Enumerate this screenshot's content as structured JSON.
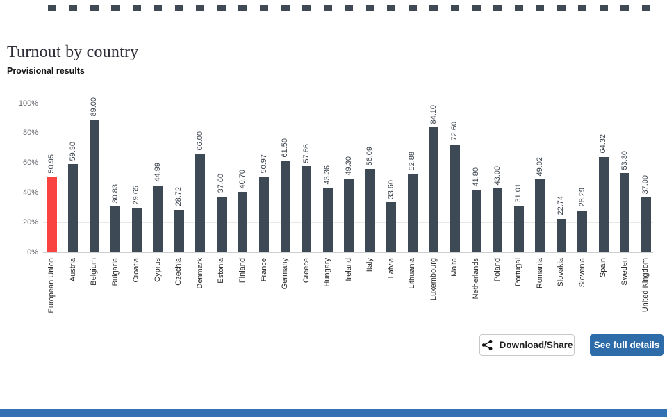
{
  "page": {
    "title": "Turnout by country",
    "subtitle": "Provisional results"
  },
  "buttons": {
    "download_share": "Download/Share",
    "see_full_details": "See full details"
  },
  "colors": {
    "bar": "#3d4a56",
    "highlight_bar": "#f94340",
    "grid": "#e8e8e8",
    "baseline": "#cfcfcf",
    "primary_button": "#2e6ca9",
    "footer_strip": "#3070b3",
    "top_mark": "#3f4a55"
  },
  "chart_data": {
    "type": "bar",
    "title": "Turnout by country",
    "subtitle": "Provisional results",
    "categories": [
      "European Union",
      "Austria",
      "Belgium",
      "Bulgaria",
      "Croatia",
      "Cyprus",
      "Czechia",
      "Denmark",
      "Estonia",
      "Finland",
      "France",
      "Germany",
      "Greece",
      "Hungary",
      "Ireland",
      "Italy",
      "Latvia",
      "Lithuania",
      "Luxembourg",
      "Malta",
      "Netherlands",
      "Poland",
      "Portugal",
      "Romania",
      "Slovakia",
      "Slovenia",
      "Spain",
      "Sweden",
      "United Kingdom"
    ],
    "values": [
      50.95,
      59.3,
      89.0,
      30.83,
      29.65,
      44.99,
      28.72,
      66.0,
      37.6,
      40.7,
      50.97,
      61.5,
      57.86,
      43.36,
      49.3,
      56.09,
      33.6,
      52.88,
      84.1,
      72.6,
      41.8,
      43.0,
      31.01,
      49.02,
      22.74,
      28.29,
      64.32,
      53.3,
      37.0
    ],
    "value_labels": [
      "50.95",
      "59.30",
      "89.00",
      "30.83",
      "29.65",
      "44.99",
      "28.72",
      "66.00",
      "37.60",
      "40.70",
      "50.97",
      "61.50",
      "57.86",
      "43.36",
      "49.30",
      "56.09",
      "33.60",
      "52.88",
      "84.10",
      "72.60",
      "41.80",
      "43.00",
      "31.01",
      "49.02",
      "22.74",
      "28.29",
      "64.32",
      "53.30",
      "37.00"
    ],
    "highlight_category": "European Union",
    "y_ticks": [
      "0%",
      "20%",
      "40%",
      "60%",
      "80%",
      "100%"
    ],
    "y_tick_values": [
      0,
      20,
      40,
      60,
      80,
      100
    ],
    "ylim": [
      0,
      100
    ],
    "grid": true,
    "legend": "none",
    "value_labels_rotated": true,
    "category_labels_rotated": true
  }
}
